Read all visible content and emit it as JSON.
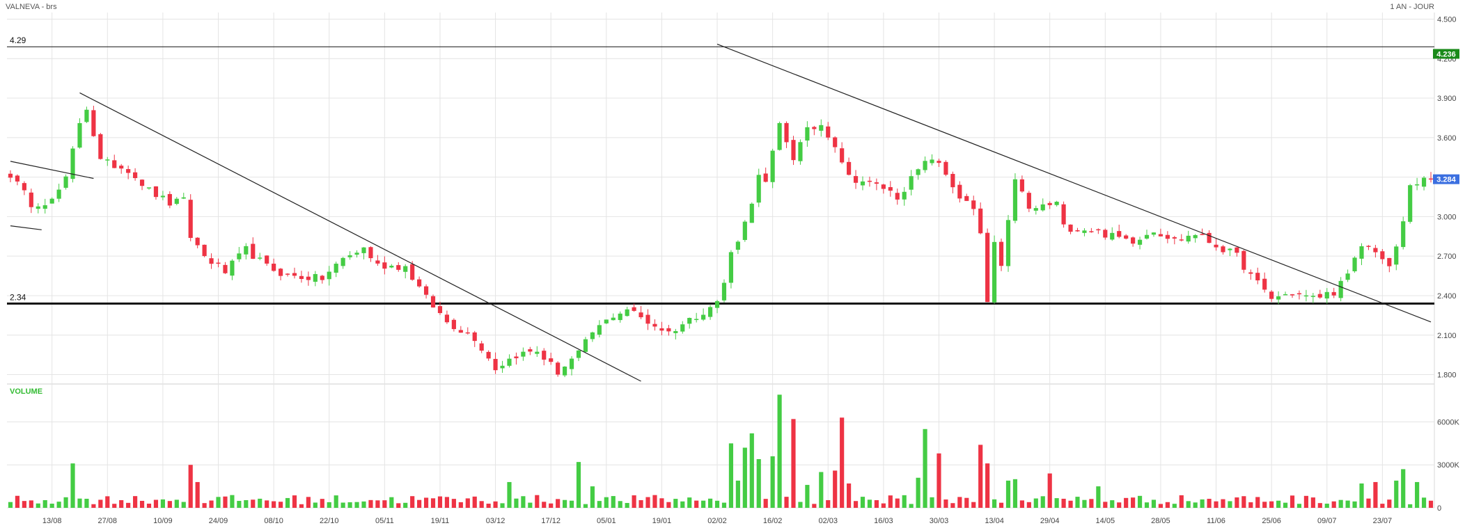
{
  "header": {
    "symbol": "VALNEVA - brs",
    "period": "1 AN - JOUR"
  },
  "badges": {
    "resistance": {
      "text": "4.236",
      "color": "#1a8a1a"
    },
    "last": {
      "text": "3.284",
      "color": "#3b6fe0"
    }
  },
  "volume_panel": {
    "title": "VOLUME",
    "title_color": "#33bb33"
  },
  "colors": {
    "up": "#44cc44",
    "down": "#ee3344",
    "grid": "#e4e4e4",
    "trendline": "#222222"
  },
  "chart_data": {
    "type": "candlestick",
    "title": "VALNEVA - brs",
    "ylim": [
      1.75,
      4.55
    ],
    "y_ticks": [
      "4.500",
      "4.200",
      "3.900",
      "3.600",
      "3.300",
      "3.000",
      "2.700",
      "2.400",
      "2.100",
      "1.800"
    ],
    "x_labels": [
      "13/08",
      "27/08",
      "10/09",
      "24/09",
      "08/10",
      "22/10",
      "05/11",
      "19/11",
      "03/12",
      "17/12",
      "05/01",
      "19/01",
      "02/02",
      "16/02",
      "02/03",
      "16/03",
      "30/03",
      "13/04",
      "29/04",
      "14/05",
      "28/05",
      "11/06",
      "25/06",
      "09/07",
      "23/07"
    ],
    "horizontal_levels": [
      {
        "label": "4.29",
        "value": 4.29,
        "weight": "thin"
      },
      {
        "label": "2.34",
        "value": 2.34,
        "weight": "bold"
      }
    ],
    "trendlines": [
      {
        "from": [
          0,
          3.42
        ],
        "to": [
          12,
          3.29
        ]
      },
      {
        "from": [
          0,
          2.93
        ],
        "to": [
          4.5,
          2.9
        ]
      },
      {
        "from": [
          10,
          3.94
        ],
        "to": [
          91,
          1.75
        ]
      },
      {
        "from": [
          102,
          4.31
        ],
        "to": [
          205,
          2.2
        ]
      }
    ],
    "price_anchors": [
      [
        0,
        3.32
      ],
      [
        3,
        3.1
      ],
      [
        6,
        3.12
      ],
      [
        8,
        3.28
      ],
      [
        10,
        3.72
      ],
      [
        11,
        3.83
      ],
      [
        13,
        3.42
      ],
      [
        17,
        3.36
      ],
      [
        20,
        3.2
      ],
      [
        23,
        3.1
      ],
      [
        25,
        3.12
      ],
      [
        26,
        2.85
      ],
      [
        28,
        2.7
      ],
      [
        31,
        2.58
      ],
      [
        34,
        2.75
      ],
      [
        37,
        2.62
      ],
      [
        40,
        2.55
      ],
      [
        45,
        2.53
      ],
      [
        48,
        2.68
      ],
      [
        51,
        2.76
      ],
      [
        53,
        2.63
      ],
      [
        57,
        2.62
      ],
      [
        60,
        2.38
      ],
      [
        63,
        2.2
      ],
      [
        67,
        2.08
      ],
      [
        70,
        1.85
      ],
      [
        73,
        1.95
      ],
      [
        76,
        1.98
      ],
      [
        79,
        1.82
      ],
      [
        82,
        1.96
      ],
      [
        84,
        2.12
      ],
      [
        87,
        2.25
      ],
      [
        89,
        2.3
      ],
      [
        92,
        2.2
      ],
      [
        95,
        2.12
      ],
      [
        99,
        2.25
      ],
      [
        102,
        2.35
      ],
      [
        103,
        2.5
      ],
      [
        104,
        2.72
      ],
      [
        106,
        2.95
      ],
      [
        108,
        3.3
      ],
      [
        109,
        3.25
      ],
      [
        111,
        3.7
      ],
      [
        113,
        3.45
      ],
      [
        115,
        3.65
      ],
      [
        117,
        3.7
      ],
      [
        119,
        3.55
      ],
      [
        121,
        3.3
      ],
      [
        123,
        3.27
      ],
      [
        126,
        3.22
      ],
      [
        128,
        3.15
      ],
      [
        131,
        3.35
      ],
      [
        133,
        3.45
      ],
      [
        135,
        3.32
      ],
      [
        137,
        3.15
      ],
      [
        139,
        3.05
      ],
      [
        140,
        2.85
      ],
      [
        141,
        2.35
      ],
      [
        142,
        2.8
      ],
      [
        143,
        2.6
      ],
      [
        145,
        3.3
      ],
      [
        147,
        3.05
      ],
      [
        149,
        3.08
      ],
      [
        151,
        3.1
      ],
      [
        152,
        2.92
      ],
      [
        156,
        2.9
      ],
      [
        159,
        2.85
      ],
      [
        162,
        2.82
      ],
      [
        165,
        2.9
      ],
      [
        168,
        2.82
      ],
      [
        171,
        2.87
      ],
      [
        174,
        2.78
      ],
      [
        177,
        2.7
      ],
      [
        179,
        2.55
      ],
      [
        182,
        2.38
      ],
      [
        185,
        2.42
      ],
      [
        188,
        2.38
      ],
      [
        191,
        2.43
      ],
      [
        193,
        2.55
      ],
      [
        195,
        2.78
      ],
      [
        197,
        2.75
      ],
      [
        199,
        2.6
      ],
      [
        201,
        2.95
      ],
      [
        202,
        3.25
      ],
      [
        205,
        3.28
      ]
    ],
    "volume": {
      "ylim": [
        0,
        8500
      ],
      "y_ticks": [
        "6000K",
        "3000K",
        "0"
      ],
      "spikes": [
        [
          9,
          3100
        ],
        [
          26,
          3000
        ],
        [
          27,
          1800
        ],
        [
          72,
          1800
        ],
        [
          82,
          3200
        ],
        [
          84,
          1500
        ],
        [
          104,
          4500
        ],
        [
          105,
          1900
        ],
        [
          106,
          4200
        ],
        [
          107,
          5200
        ],
        [
          108,
          3400
        ],
        [
          110,
          3600
        ],
        [
          111,
          7900
        ],
        [
          113,
          6200
        ],
        [
          115,
          1600
        ],
        [
          117,
          2500
        ],
        [
          119,
          2600
        ],
        [
          120,
          6300
        ],
        [
          121,
          1700
        ],
        [
          131,
          2100
        ],
        [
          132,
          5500
        ],
        [
          134,
          3800
        ],
        [
          140,
          4400
        ],
        [
          141,
          3100
        ],
        [
          144,
          1900
        ],
        [
          145,
          2000
        ],
        [
          150,
          2400
        ],
        [
          157,
          1500
        ],
        [
          195,
          1700
        ],
        [
          197,
          1800
        ],
        [
          200,
          1900
        ],
        [
          201,
          2700
        ],
        [
          203,
          1800
        ]
      ]
    }
  }
}
